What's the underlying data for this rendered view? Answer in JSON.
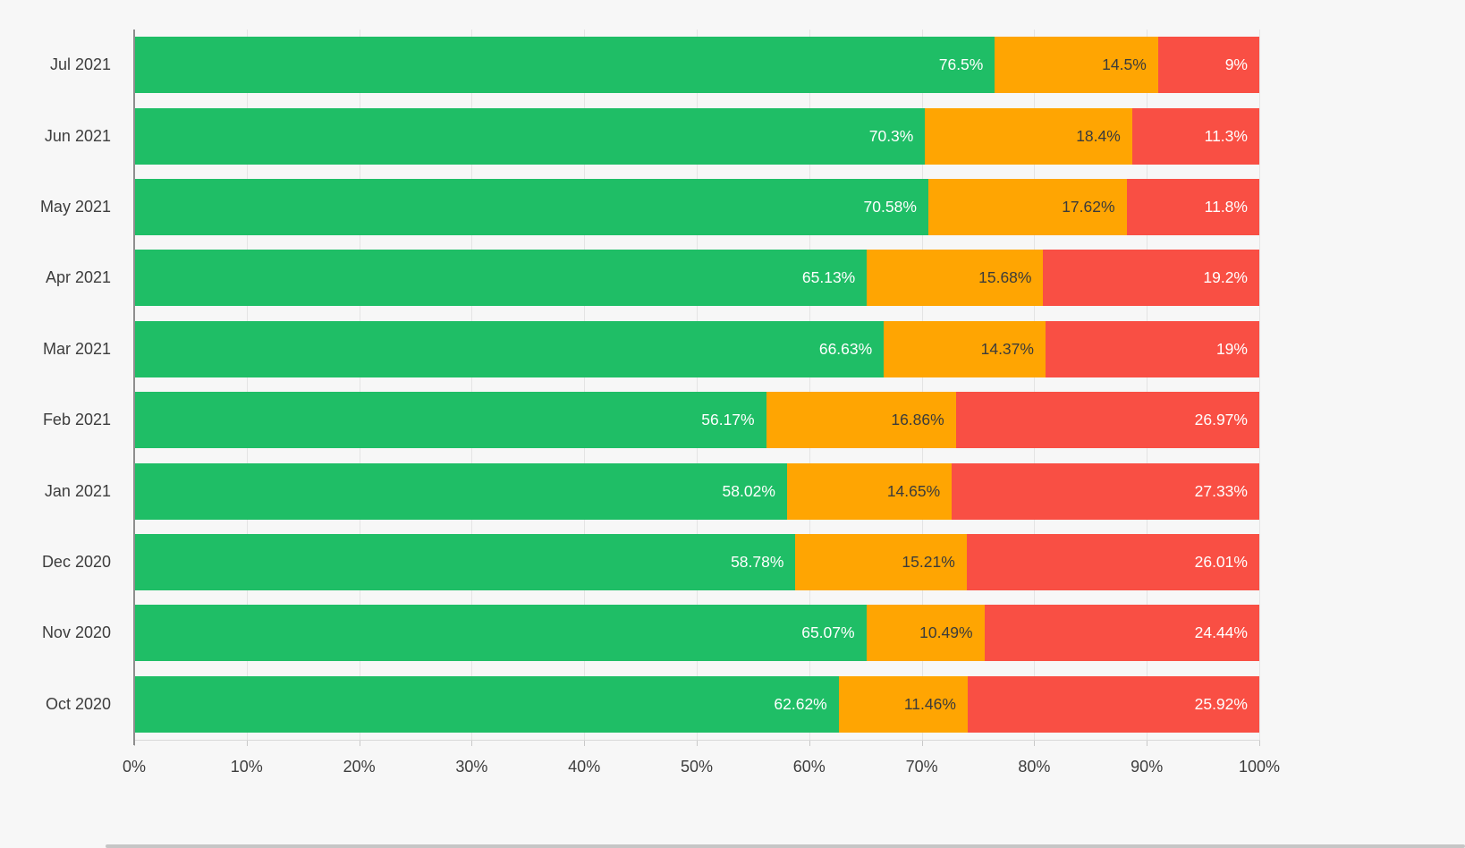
{
  "background": "#f7f7f7",
  "colors": {
    "green": "#1fbe66",
    "orange": "#ffa502",
    "red": "#f94f44",
    "grid": "#e4e4e4",
    "y_axis_line": "#8e8e8e",
    "x_axis_line": "#d9d9d9",
    "axis_text": "#3d3d3d",
    "label_on_green": "#ffffff",
    "label_on_orange": "#3b3b3b",
    "label_on_red": "#ffffff"
  },
  "chart_data": {
    "type": "bar",
    "orientation": "horizontal",
    "stacked": true,
    "title": "",
    "xlabel": "",
    "ylabel": "",
    "xlim": [
      0,
      100
    ],
    "grid": true,
    "legend": "none",
    "categories": [
      "Jul 2021",
      "Jun 2021",
      "May 2021",
      "Apr 2021",
      "Mar 2021",
      "Feb 2021",
      "Jan 2021",
      "Dec 2020",
      "Nov 2020",
      "Oct 2020"
    ],
    "x_ticks": [
      "0%",
      "10%",
      "20%",
      "30%",
      "40%",
      "50%",
      "60%",
      "70%",
      "80%",
      "90%",
      "100%"
    ],
    "series": [
      {
        "name": "green",
        "color": "#1fbe66",
        "label_color": "#ffffff",
        "values": [
          76.5,
          70.3,
          70.58,
          65.13,
          66.63,
          56.17,
          58.02,
          58.78,
          65.07,
          62.62
        ],
        "labels": [
          "76.5%",
          "70.3%",
          "70.58%",
          "65.13%",
          "66.63%",
          "56.17%",
          "58.02%",
          "58.78%",
          "65.07%",
          "62.62%"
        ]
      },
      {
        "name": "orange",
        "color": "#ffa502",
        "label_color": "#3b3b3b",
        "values": [
          14.5,
          18.4,
          17.62,
          15.68,
          14.37,
          16.86,
          14.65,
          15.21,
          10.49,
          11.46
        ],
        "labels": [
          "14.5%",
          "18.4%",
          "17.62%",
          "15.68%",
          "14.37%",
          "16.86%",
          "14.65%",
          "15.21%",
          "10.49%",
          "11.46%"
        ]
      },
      {
        "name": "red",
        "color": "#f94f44",
        "label_color": "#ffffff",
        "values": [
          9,
          11.3,
          11.8,
          19.2,
          19,
          26.97,
          27.33,
          26.01,
          24.44,
          25.92
        ],
        "labels": [
          "9%",
          "11.3%",
          "11.8%",
          "19.2%",
          "19%",
          "26.97%",
          "27.33%",
          "26.01%",
          "24.44%",
          "25.92%"
        ]
      }
    ]
  }
}
